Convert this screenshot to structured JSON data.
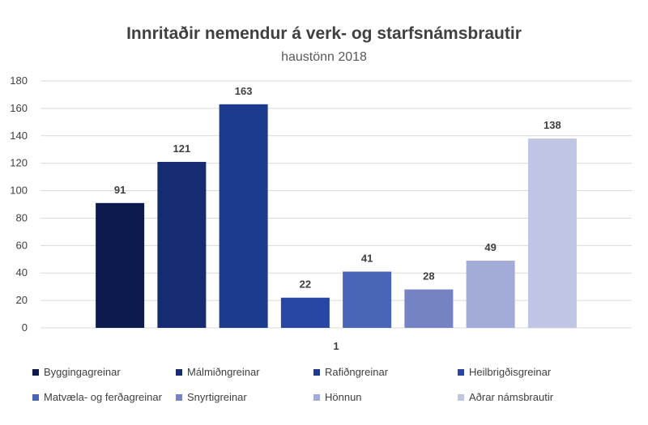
{
  "chart_data": {
    "type": "bar",
    "title": "Innritaðir nemendur á verk- og starfsnámsbrautir",
    "subtitle": "haustönn 2018",
    "categories": [
      "1"
    ],
    "ylim": [
      0,
      180
    ],
    "yticks": [
      "0",
      "20",
      "40",
      "60",
      "80",
      "100",
      "120",
      "140",
      "160",
      "180"
    ],
    "grid": true,
    "legend_position": "bottom",
    "series": [
      {
        "name": "Byggingagreinar",
        "values": [
          91
        ],
        "color": "#0d1a4d"
      },
      {
        "name": "Málmiðngreinar",
        "values": [
          121
        ],
        "color": "#152c72"
      },
      {
        "name": "Rafiðngreinar",
        "values": [
          163
        ],
        "color": "#1c3a8e"
      },
      {
        "name": "Heilbrigðisgreinar",
        "values": [
          22
        ],
        "color": "#2847a4"
      },
      {
        "name": "Matvæla- og ferðagreinar",
        "values": [
          41
        ],
        "color": "#4a64b8"
      },
      {
        "name": "Snyrtigreinar",
        "values": [
          28
        ],
        "color": "#7582c4"
      },
      {
        "name": "Hönnun",
        "values": [
          49
        ],
        "color": "#a3acd8"
      },
      {
        "name": "Aðrar námsbrautir",
        "values": [
          138
        ],
        "color": "#bfc5e3"
      }
    ]
  }
}
